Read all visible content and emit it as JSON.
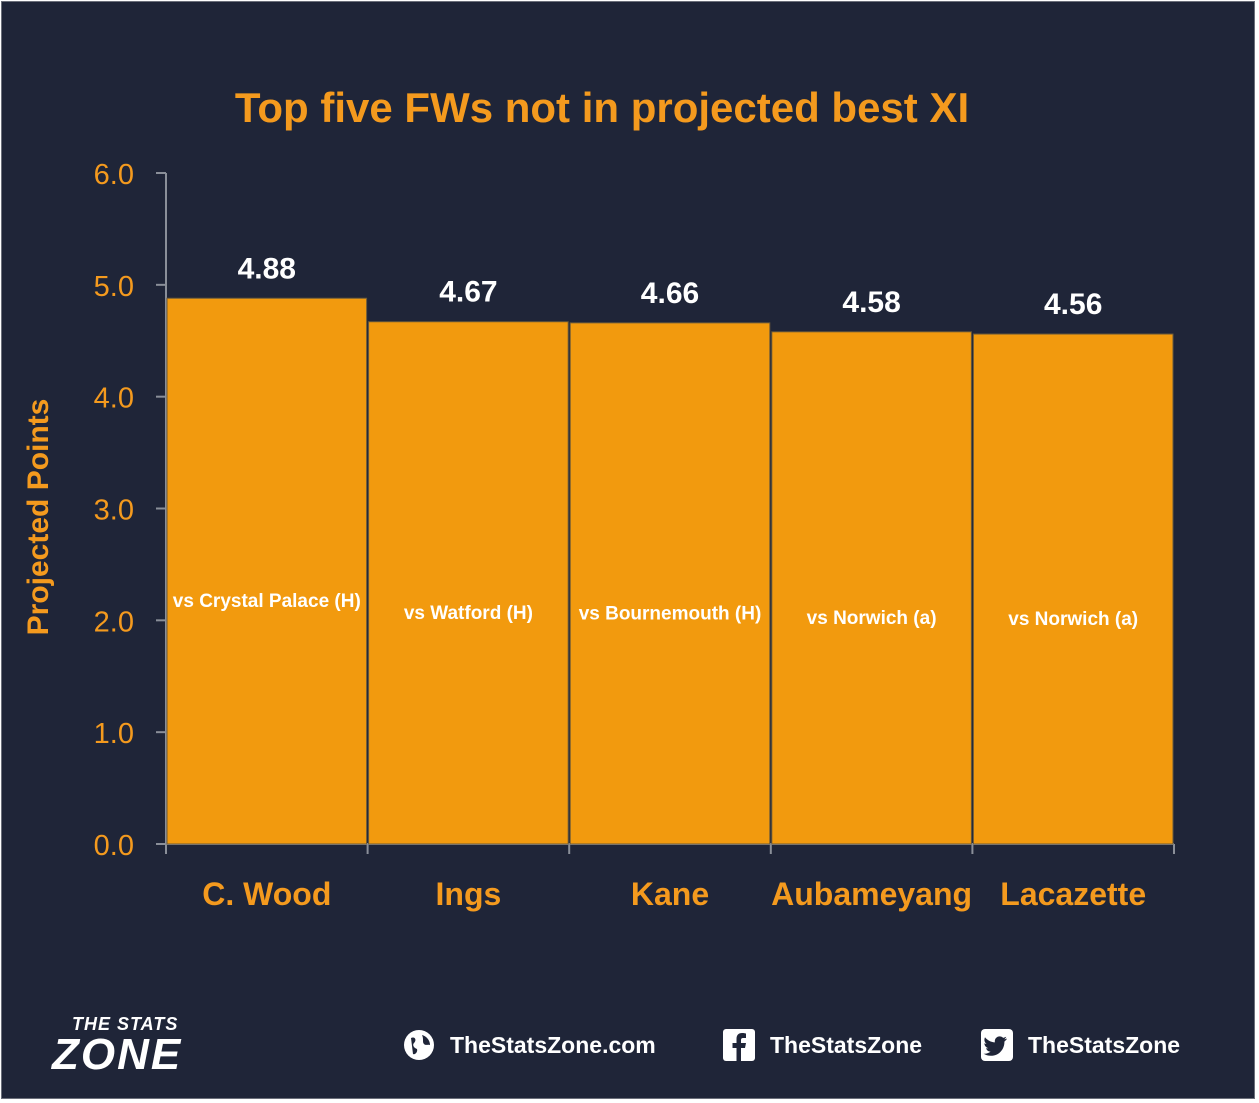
{
  "chart_data": {
    "type": "bar",
    "title": "Top five FWs not in projected best XI",
    "ylabel": "Projected Points",
    "xlabel": "",
    "ylim": [
      0,
      6
    ],
    "yticks": [
      "0.0",
      "1.0",
      "2.0",
      "3.0",
      "4.0",
      "5.0",
      "6.0"
    ],
    "categories": [
      "C. Wood",
      "Ings",
      "Kane",
      "Aubameyang",
      "Lacazette"
    ],
    "values": [
      4.88,
      4.67,
      4.66,
      4.58,
      4.56
    ],
    "value_labels": [
      "4.88",
      "4.67",
      "4.66",
      "4.58",
      "4.56"
    ],
    "bar_notes": [
      "vs Crystal Palace (H)",
      "vs Watford (H)",
      "vs Bournemouth (H)",
      "vs Norwich (a)",
      "vs Norwich (a)"
    ],
    "grid": false,
    "colors": {
      "background": "#1f2538",
      "bar": "#f29a0e",
      "accent": "#f49a1e",
      "value_text": "#ffffff"
    }
  },
  "footer": {
    "brand_top": "THE STATS",
    "brand_bottom": "ZONE",
    "website": "TheStatsZone.com",
    "facebook": "TheStatsZone",
    "twitter": "TheStatsZone",
    "icons": [
      "globe-icon",
      "facebook-icon",
      "twitter-icon"
    ]
  }
}
